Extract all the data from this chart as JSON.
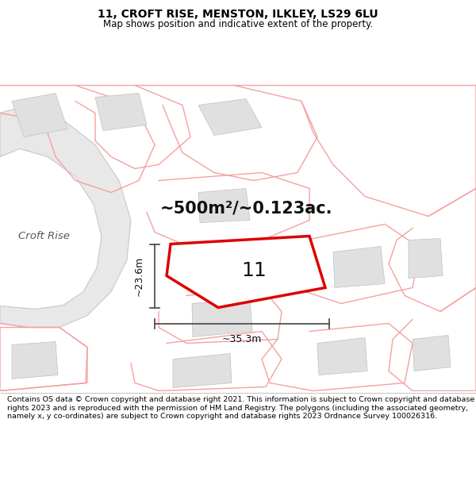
{
  "title_line1": "11, CROFT RISE, MENSTON, ILKLEY, LS29 6LU",
  "title_line2": "Map shows position and indicative extent of the property.",
  "area_label": "~500m²/~0.123ac.",
  "plot_number": "11",
  "dim_vertical": "~23.6m",
  "dim_horizontal": "~35.3m",
  "road_label": "Croft Rise",
  "footer_text": "Contains OS data © Crown copyright and database right 2021. This information is subject to Crown copyright and database rights 2023 and is reproduced with the permission of HM Land Registry. The polygons (including the associated geometry, namely x, y co-ordinates) are subject to Crown copyright and database rights 2023 Ordnance Survey 100026316.",
  "bg_color": "#ffffff",
  "map_bg": "#ffffff",
  "parcel_edge": "#f5a0a0",
  "parcel_lw": 1.0,
  "building_fill": "#e0e0e0",
  "building_edge": "#c0c0c0",
  "road_fill": "#e8e8e8",
  "road_edge": "#c8c8c8",
  "highlight_fill": "#ffffff",
  "highlight_edge": "#dd0000",
  "highlight_lw": 2.5,
  "dim_color": "#444444",
  "text_color": "#555555",
  "title_color": "#000000",
  "footer_color": "#000000"
}
